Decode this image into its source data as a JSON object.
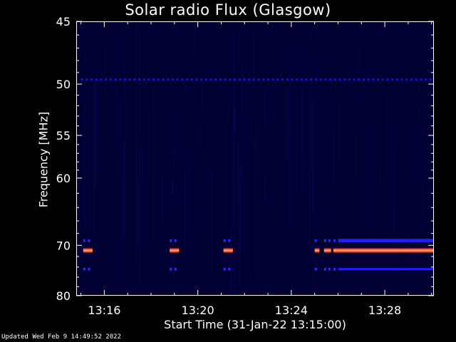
{
  "chart_data": {
    "type": "heatmap",
    "title": "Solar radio Flux (Glasgow)",
    "xlabel": "Start Time (31-Jan-22 13:15:00)",
    "ylabel": "Frequency [MHz]",
    "x_ticks": [
      "13:16",
      "13:20",
      "13:24",
      "13:28"
    ],
    "x_tick_minutes": [
      16,
      20,
      24,
      28
    ],
    "xlim_minutes": [
      14.8,
      30.1
    ],
    "y_ticks": [
      45,
      50,
      55,
      60,
      70,
      80
    ],
    "ylim": [
      45,
      80
    ],
    "y_scale": "reciprocal",
    "background_color": "#000033",
    "features": [
      {
        "name": "band",
        "freq_mhz": 49.6,
        "start_min": 15.0,
        "end_min": 30.1,
        "intensity": "low",
        "color": "#1414c8"
      },
      {
        "name": "band",
        "freq_mhz": 69.2,
        "start_min": 26.0,
        "end_min": 30.1,
        "intensity": "medium",
        "color": "#1e1eff"
      },
      {
        "name": "band",
        "freq_mhz": 70.9,
        "start_min": 26.0,
        "end_min": 30.1,
        "intensity": "high",
        "color": "#ff3c1e"
      },
      {
        "name": "band",
        "freq_mhz": 74.4,
        "start_min": 26.0,
        "end_min": 30.1,
        "intensity": "low",
        "color": "#1e1eff"
      },
      {
        "name": "burst",
        "freq_mhz": 70.9,
        "start_min": 15.1,
        "end_min": 15.5,
        "intensity": "high",
        "color": "#ff3c1e"
      },
      {
        "name": "burst",
        "freq_mhz": 70.9,
        "start_min": 18.8,
        "end_min": 19.2,
        "intensity": "high",
        "color": "#ff3c1e"
      },
      {
        "name": "burst",
        "freq_mhz": 70.9,
        "start_min": 21.1,
        "end_min": 21.5,
        "intensity": "high",
        "color": "#ff3c1e"
      },
      {
        "name": "burst",
        "freq_mhz": 70.9,
        "start_min": 25.0,
        "end_min": 25.2,
        "intensity": "high",
        "color": "#ff3c1e"
      },
      {
        "name": "burst",
        "freq_mhz": 70.9,
        "start_min": 25.4,
        "end_min": 25.7,
        "intensity": "high",
        "color": "#ff3c1e"
      },
      {
        "name": "burst",
        "freq_mhz": 70.9,
        "start_min": 25.8,
        "end_min": 26.0,
        "intensity": "high",
        "color": "#ff3c1e"
      }
    ],
    "color_low": "#000033",
    "color_high": "#ff3c1e"
  },
  "footer": {
    "updated": "Updated Wed Feb  9 14:49:52 2022"
  }
}
